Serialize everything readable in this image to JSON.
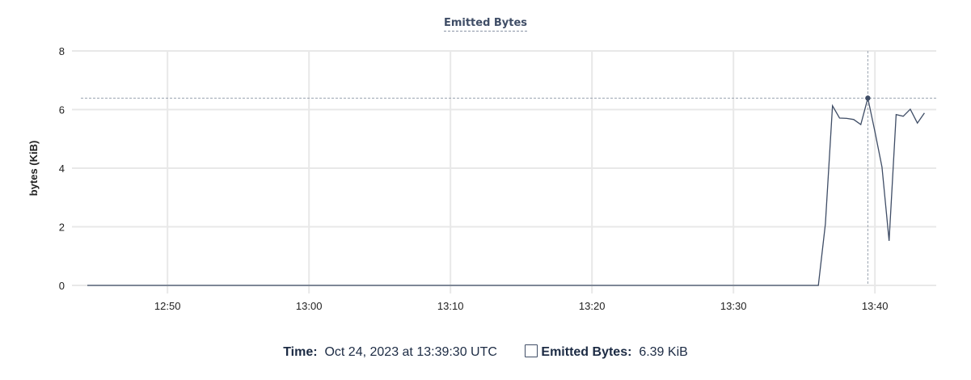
{
  "chart_data": {
    "type": "line",
    "title": "Emitted Bytes",
    "ylabel": "bytes (KiB)",
    "xlabel": "",
    "ylim": [
      0,
      8
    ],
    "yticks": [
      "0",
      "2",
      "4",
      "6",
      "8"
    ],
    "xlim": [
      "12:44:20",
      "13:44:20"
    ],
    "xticks": [
      "12:50",
      "13:00",
      "13:10",
      "13:20",
      "13:30",
      "13:40"
    ],
    "grid": true,
    "color": "#3f4d66",
    "series": [
      {
        "name": "Emitted Bytes",
        "points": [
          [
            "12:44:20",
            0
          ],
          [
            "13:36:00",
            0
          ],
          [
            "13:36:30",
            2.1
          ],
          [
            "13:37:00",
            6.13
          ],
          [
            "13:37:30",
            5.71
          ],
          [
            "13:38:00",
            5.7
          ],
          [
            "13:38:30",
            5.66
          ],
          [
            "13:39:00",
            5.49
          ],
          [
            "13:39:30",
            6.39
          ],
          [
            "13:40:00",
            5.24
          ],
          [
            "13:40:30",
            4.04
          ],
          [
            "13:41:00",
            1.52
          ],
          [
            "13:41:30",
            5.83
          ],
          [
            "13:42:00",
            5.77
          ],
          [
            "13:42:30",
            6.01
          ],
          [
            "13:43:00",
            5.54
          ],
          [
            "13:43:30",
            5.88
          ]
        ]
      }
    ],
    "hover": {
      "x": "13:39:30",
      "y": 6.39
    }
  },
  "legend": {
    "time_label": "Time:",
    "time_value": "Oct 24, 2023 at 13:39:30 UTC",
    "series_label": "Emitted Bytes:",
    "series_value": "6.39 KiB"
  }
}
